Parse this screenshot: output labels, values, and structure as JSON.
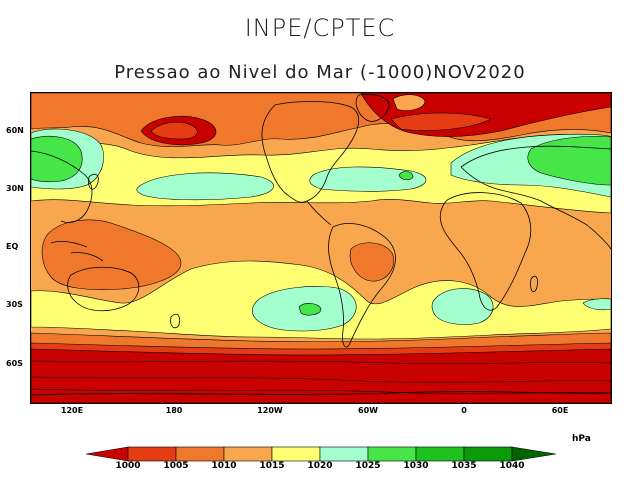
{
  "header": {
    "title": "INPE/CPTEC",
    "subtitle": "Pressao ao Nivel do Mar (-1000)NOV2020"
  },
  "map": {
    "lat_ticks": [
      "60N",
      "30N",
      "EQ",
      "30S",
      "60S"
    ],
    "lon_ticks": [
      "120E",
      "180",
      "120W",
      "60W",
      "0",
      "60E"
    ],
    "colors": {
      "lt1000": "#c80000",
      "1000_1005": "#e63c14",
      "1005_1010": "#f0782d",
      "1010_1015": "#f9a74e",
      "1015_1020": "#ffff73",
      "1020_1025": "#a3ffce",
      "1025_1030": "#46e649",
      "1030_1035": "#1ec21e",
      "1035_1040": "#0a9a0a",
      "gt1040": "#006400"
    }
  },
  "legend": {
    "unit": "hPa",
    "levels": [
      "1000",
      "1005",
      "1010",
      "1015",
      "1020",
      "1025",
      "1030",
      "1035",
      "1040"
    ]
  }
}
